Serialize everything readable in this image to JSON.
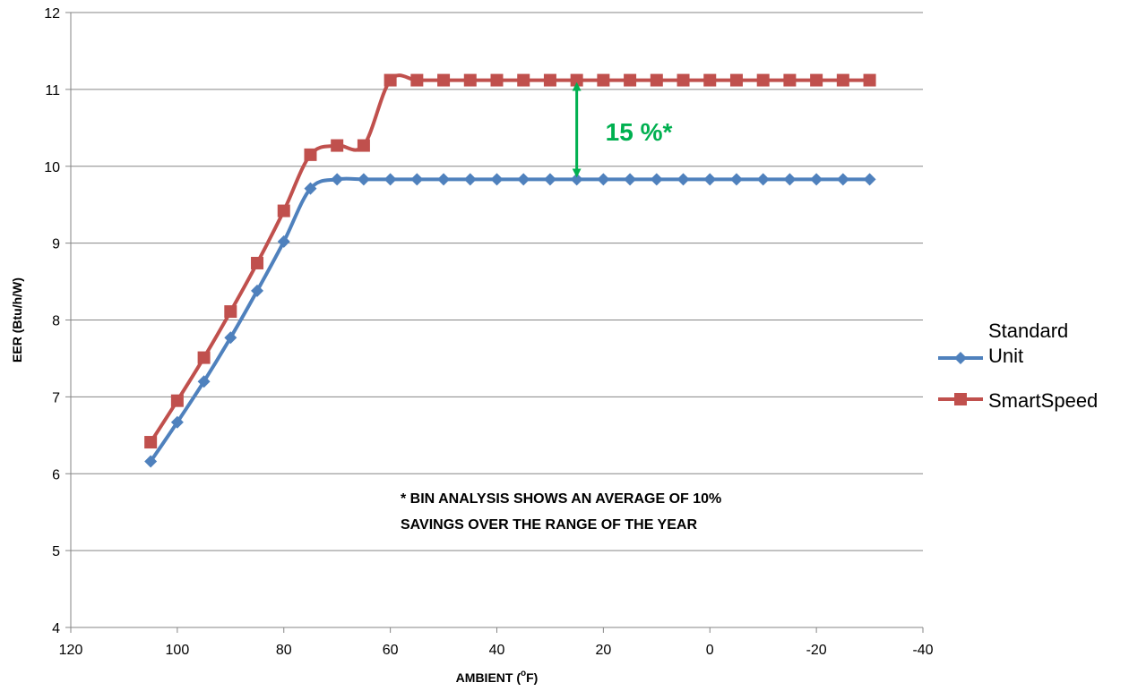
{
  "chart_data": {
    "type": "line",
    "xlabel": "AMBIENT (",
    "xlabel_sup": "o",
    "xlabel_unit": "F)",
    "ylabel": "EER (Btu/h/W)",
    "xlim": [
      120,
      -40
    ],
    "ylim": [
      4,
      12
    ],
    "x_ticks": [
      120,
      100,
      80,
      60,
      40,
      20,
      0,
      -20,
      -40
    ],
    "x_tick_labels": [
      "120",
      "100",
      "80",
      "60",
      "40",
      "20",
      "0",
      "-20",
      "-40"
    ],
    "y_ticks": [
      4,
      5,
      6,
      7,
      8,
      9,
      10,
      11,
      12
    ],
    "y_tick_labels": [
      "4",
      "5",
      "6",
      "7",
      "8",
      "9",
      "10",
      "11",
      "12"
    ],
    "grid": "horizontal",
    "legend_position": "right",
    "x": [
      105,
      100,
      95,
      90,
      85,
      80,
      75,
      70,
      65,
      60,
      55,
      50,
      45,
      40,
      35,
      30,
      25,
      20,
      15,
      10,
      5,
      0,
      -5,
      -10,
      -15,
      -20,
      -25,
      -30
    ],
    "series": [
      {
        "name": "Standard Unit",
        "legend_lines": [
          "Standard",
          "Unit"
        ],
        "color": "#4F81BD",
        "marker": "diamond",
        "values": [
          6.16,
          6.67,
          7.2,
          7.77,
          8.38,
          9.02,
          9.71,
          9.83,
          9.83,
          9.83,
          9.83,
          9.83,
          9.83,
          9.83,
          9.83,
          9.83,
          9.83,
          9.83,
          9.83,
          9.83,
          9.83,
          9.83,
          9.83,
          9.83,
          9.83,
          9.83,
          9.83,
          9.83
        ]
      },
      {
        "name": "SmartSpeed",
        "legend_lines": [
          "SmartSpeed"
        ],
        "color": "#C0504D",
        "marker": "square",
        "values": [
          6.41,
          6.95,
          7.51,
          8.11,
          8.74,
          9.42,
          10.15,
          10.27,
          10.27,
          11.12,
          11.12,
          11.12,
          11.12,
          11.12,
          11.12,
          11.12,
          11.12,
          11.12,
          11.12,
          11.12,
          11.12,
          11.12,
          11.12,
          11.12,
          11.12,
          11.12,
          11.12,
          11.12
        ]
      }
    ],
    "annotations": {
      "callout_text": "15 %*",
      "callout_color": "#00B050",
      "arrow_x": 25,
      "arrow_from": 11.12,
      "arrow_to": 9.83,
      "note_line1": "* BIN ANALYSIS SHOWS AN AVERAGE OF 10%",
      "note_line2": "SAVINGS OVER THE RANGE OF THE YEAR"
    }
  }
}
